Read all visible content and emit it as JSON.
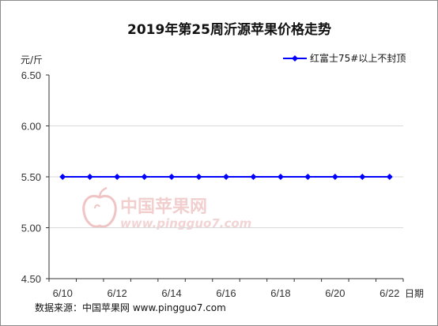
{
  "chart_data": {
    "type": "line",
    "title": "2019年第25周沂源苹果价格走势",
    "ylabel": "元/斤",
    "xlabel": "日期",
    "ylim": [
      4.5,
      6.5
    ],
    "yticks": [
      "6.50",
      "6.00",
      "5.50",
      "5.00",
      "4.50"
    ],
    "ytick_values": [
      6.5,
      6.0,
      5.5,
      5.0,
      4.5
    ],
    "x": [
      "6/10",
      "6/11",
      "6/12",
      "6/13",
      "6/14",
      "6/15",
      "6/16",
      "6/17",
      "6/18",
      "6/19",
      "6/20",
      "6/21",
      "6/22"
    ],
    "xtick_labels": [
      "6/10",
      "6/12",
      "6/14",
      "6/16",
      "6/18",
      "6/20",
      "6/22"
    ],
    "series": [
      {
        "name": "红富士75#以上不封顶",
        "color": "#0000ff",
        "values": [
          5.5,
          5.5,
          5.5,
          5.5,
          5.5,
          5.5,
          5.5,
          5.5,
          5.5,
          5.5,
          5.5,
          5.5,
          5.5
        ]
      }
    ],
    "legend_position": "top-right",
    "grid": true
  },
  "watermark": {
    "name_cn": "中国苹果网",
    "name_en": "www.pingguo7.com"
  },
  "source": "数据来源：中国苹果网 www.pingguo7.com"
}
